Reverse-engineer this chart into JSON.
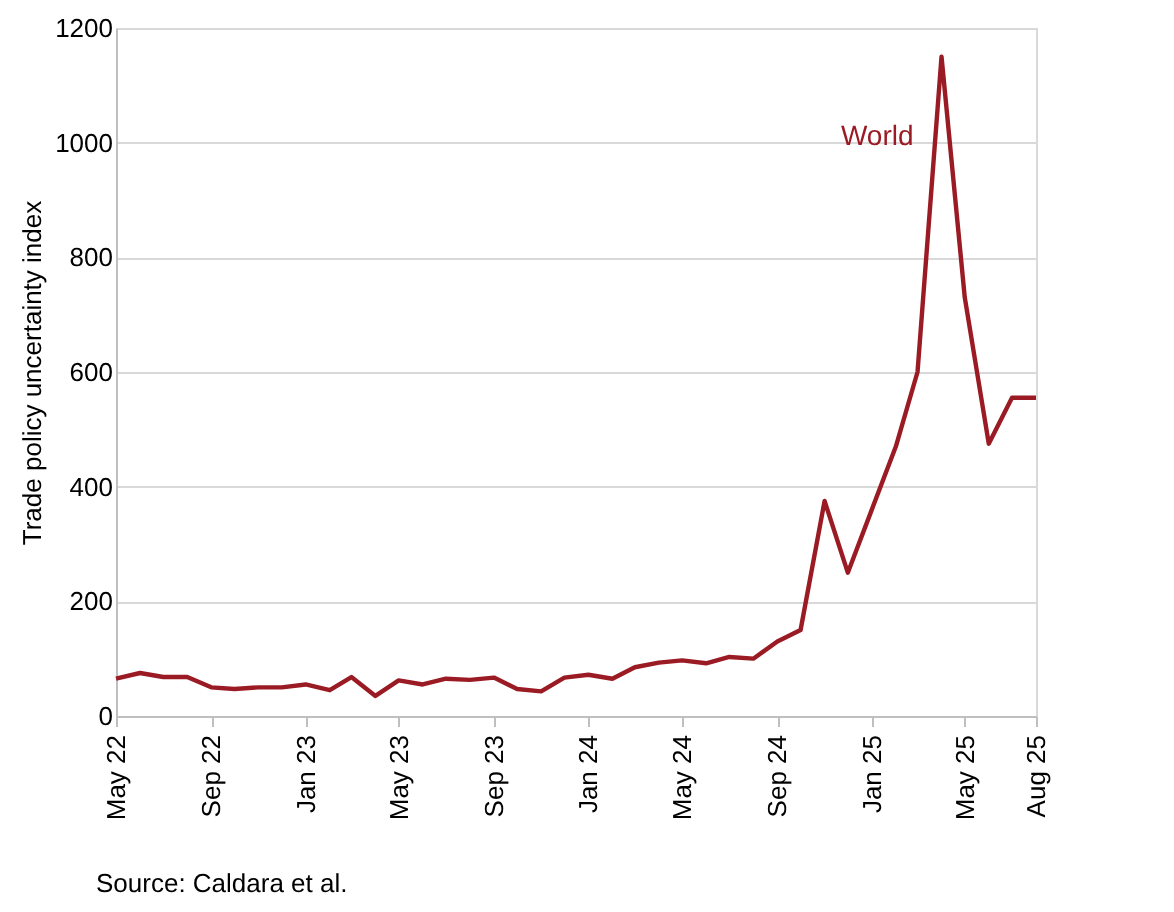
{
  "chart_data": {
    "type": "line",
    "ylabel": "Trade policy uncertainty index",
    "x": [
      "2022-05",
      "2022-06",
      "2022-07",
      "2022-08",
      "2022-09",
      "2022-10",
      "2022-11",
      "2022-12",
      "2023-01",
      "2023-02",
      "2023-03",
      "2023-04",
      "2023-05",
      "2023-06",
      "2023-07",
      "2023-08",
      "2023-09",
      "2023-10",
      "2023-11",
      "2023-12",
      "2024-01",
      "2024-02",
      "2024-03",
      "2024-04",
      "2024-05",
      "2024-06",
      "2024-07",
      "2024-08",
      "2024-09",
      "2024-10",
      "2024-11",
      "2024-12",
      "2025-01",
      "2025-02",
      "2025-03",
      "2025-04",
      "2025-05",
      "2025-06",
      "2025-07",
      "2025-08"
    ],
    "series": [
      {
        "name": "World",
        "color": "#9b1b24",
        "values": [
          65,
          75,
          68,
          68,
          50,
          47,
          50,
          50,
          55,
          45,
          68,
          35,
          62,
          55,
          65,
          63,
          67,
          47,
          43,
          67,
          72,
          65,
          85,
          93,
          97,
          92,
          103,
          100,
          130,
          150,
          375,
          250,
          360,
          470,
          600,
          1150,
          730,
          475,
          555,
          555
        ]
      }
    ],
    "xlim": [
      "2022-05",
      "2025-08"
    ],
    "xticks": [
      {
        "value": "2022-05",
        "label": "May 22"
      },
      {
        "value": "2022-09",
        "label": "Sep 22"
      },
      {
        "value": "2023-01",
        "label": "Jan 23"
      },
      {
        "value": "2023-05",
        "label": "May 23"
      },
      {
        "value": "2023-09",
        "label": "Sep 23"
      },
      {
        "value": "2024-01",
        "label": "Jan 24"
      },
      {
        "value": "2024-05",
        "label": "May 24"
      },
      {
        "value": "2024-09",
        "label": "Sep 24"
      },
      {
        "value": "2025-01",
        "label": "Jan 25"
      },
      {
        "value": "2025-05",
        "label": "May 25"
      },
      {
        "value": "2025-08",
        "label": "Aug 25"
      }
    ],
    "ylim": [
      0,
      1200
    ],
    "yticks": [
      0,
      200,
      400,
      600,
      800,
      1000,
      1200
    ],
    "grid": "y",
    "legend": false,
    "marker": "none",
    "line_style": "solid",
    "annotations": [
      "Source: Caldara et al."
    ]
  }
}
